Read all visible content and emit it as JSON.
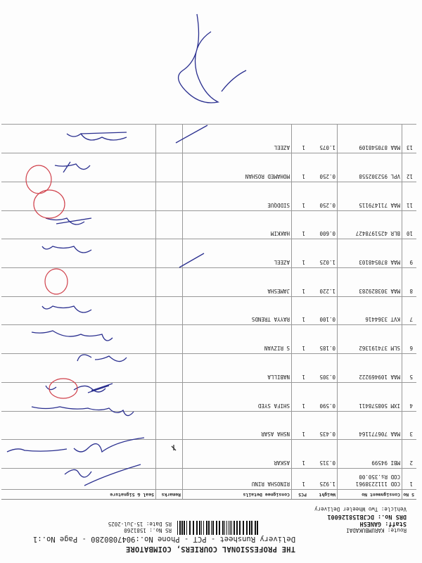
{
  "header": {
    "company": "THE PROFESSIONAL COURIERS, COIMBATORE",
    "runsheet_title": "Delivery Runsheet - PCT - Phone No.:9047080280 - Page No.:1",
    "route": "Route: KARUMBUKADAI",
    "staff": "Staff: GANESH",
    "drs_no": "DRS No.: DCJB158126001",
    "vehicle": "Vehicle: Two Wheeler Delivery",
    "rs_no": "RS No.: 1581260",
    "rs_date": "RS Date: 15-Jul-2025"
  },
  "table": {
    "columns": [
      "S No",
      "Consignment No",
      "Weight",
      "PCS",
      "Consignee Details",
      "Remarks",
      "Seal & Signature"
    ],
    "rows": [
      {
        "sno": "1",
        "consignment": "COD 1112238961",
        "cod": "COD Rs.350.00",
        "weight": "1.925",
        "pcs": "1",
        "consignee": "RINOSHA RINU"
      },
      {
        "sno": "2",
        "consignment": "MBI 94599",
        "weight": "0.315",
        "pcs": "1",
        "consignee": "ASKAR"
      },
      {
        "sno": "3",
        "consignment": "MAA 706771164",
        "weight": "0.435",
        "pcs": "1",
        "consignee": "NSHA ASAR"
      },
      {
        "sno": "4",
        "consignment": "IXM 508578411",
        "weight": "0.590",
        "pcs": "1",
        "consignee": "SHIFA SYED"
      },
      {
        "sno": "5",
        "consignment": "MAA 109469222",
        "weight": "0.305",
        "pcs": "1",
        "consignee": "NABILLA"
      },
      {
        "sno": "6",
        "consignment": "SLM 374191362",
        "weight": "0.185",
        "pcs": "1",
        "consignee": "S RIZVAN"
      },
      {
        "sno": "7",
        "consignment": "KVT 3364416",
        "weight": "0.100",
        "pcs": "1",
        "consignee": "RAYYA TRENDS"
      },
      {
        "sno": "8",
        "consignment": "MAA 303829283",
        "weight": "1.220",
        "pcs": "1",
        "consignee": "JAMESHA"
      },
      {
        "sno": "9",
        "consignment": "MAA 870548103",
        "weight": "1.025",
        "pcs": "1",
        "consignee": "AZEEL"
      },
      {
        "sno": "10",
        "consignment": "BLR 4251978427",
        "weight": "0.600",
        "pcs": "1",
        "consignee": "HAKKIM"
      },
      {
        "sno": "11",
        "consignment": "MAA 711479115",
        "weight": "0.250",
        "pcs": "1",
        "consignee": "SIDDQUE"
      },
      {
        "sno": "12",
        "consignment": "VPL 952302558",
        "weight": "0.250",
        "pcs": "1",
        "consignee": "MOHAMED ROSHAN"
      },
      {
        "sno": "13",
        "consignment": "MAA 870548109",
        "weight": "1.075",
        "pcs": "1",
        "consignee": "AZEEL"
      }
    ]
  },
  "orientation": "rotated 180 degrees",
  "colors": {
    "ink": "#222222",
    "signature_ink": "#2a2f8f",
    "stamp_red": "#d0404a"
  }
}
